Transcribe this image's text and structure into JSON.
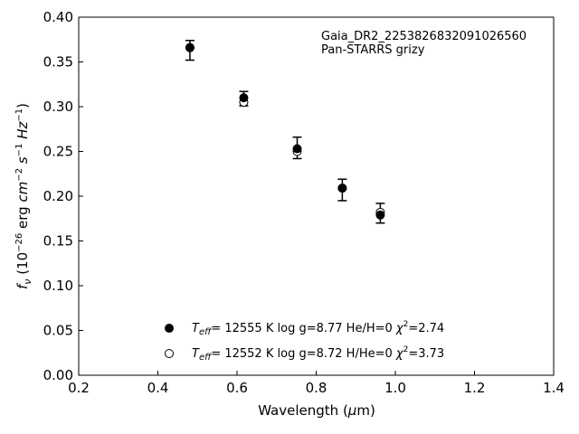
{
  "chart_data": {
    "type": "scatter",
    "annotation": [
      "Gaia_DR2_2253826832091026560",
      "Pan-STARRS grizy"
    ],
    "xlabel": "Wavelength (μm)",
    "ylabel": "f_ν (10^-26 erg cm^-2 s^-1 Hz^-1)",
    "xlim": [
      0.2,
      1.4
    ],
    "ylim": [
      0.0,
      0.4
    ],
    "xticks": [
      0.2,
      0.4,
      0.6,
      0.8,
      1.0,
      1.2,
      1.4
    ],
    "xtick_labels": [
      "0.2",
      "0.4",
      "0.6",
      "0.8",
      "1.0",
      "1.2",
      "1.4"
    ],
    "yticks": [
      0.0,
      0.05,
      0.1,
      0.15,
      0.2,
      0.25,
      0.3,
      0.35,
      0.4
    ],
    "ytick_labels": [
      "0.00",
      "0.05",
      "0.10",
      "0.15",
      "0.20",
      "0.25",
      "0.30",
      "0.35",
      "0.40"
    ],
    "grid": false,
    "observed": {
      "x": [
        0.481,
        0.617,
        0.752,
        0.866,
        0.962
      ],
      "y": [
        0.363,
        0.309,
        0.254,
        0.207,
        0.181
      ],
      "yerr": [
        0.011,
        0.008,
        0.012,
        0.012,
        0.011
      ]
    },
    "series": [
      {
        "label": "T_eff= 12555 K  log g=8.77  He/H=0  χ²=2.74",
        "marker": "filled-circle",
        "x": [
          0.481,
          0.617,
          0.752,
          0.866,
          0.962
        ],
        "y": [
          0.366,
          0.31,
          0.253,
          0.209,
          0.179
        ]
      },
      {
        "label": "T_eff= 12552 K  log g=8.72  H/He=0  χ²=3.73",
        "marker": "open-circle",
        "x": [
          0.481,
          0.617,
          0.752,
          0.866,
          0.962
        ],
        "y": [
          0.366,
          0.305,
          0.25,
          0.209,
          0.182
        ]
      }
    ],
    "legend_location": "lower-center",
    "colors": {
      "marker": "#000000"
    }
  }
}
